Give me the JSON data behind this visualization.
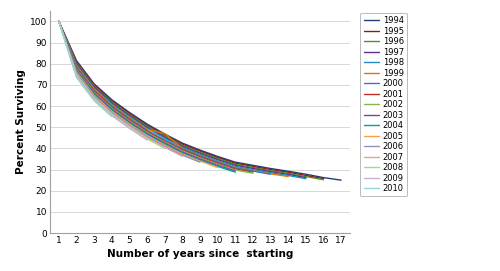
{
  "xlabel": "Number of years since  starting",
  "ylabel": "Percent Surviving",
  "xlim": [
    0.5,
    17.5
  ],
  "ylim": [
    0,
    105
  ],
  "yticks": [
    0,
    10,
    20,
    30,
    40,
    50,
    60,
    70,
    80,
    90,
    100
  ],
  "xticks": [
    1,
    2,
    3,
    4,
    5,
    6,
    7,
    8,
    9,
    10,
    11,
    12,
    13,
    14,
    15,
    16,
    17
  ],
  "series": {
    "1994": {
      "color": "#1F3F7A",
      "data": [
        100,
        81.5,
        70.5,
        63.0,
        57.0,
        51.5,
        46.8,
        42.5,
        39.2,
        36.2,
        33.5,
        32.0,
        30.5,
        29.2,
        27.8,
        26.2,
        25.0
      ]
    },
    "1995": {
      "color": "#8B1A1A",
      "data": [
        100,
        81.0,
        70.0,
        62.5,
        56.5,
        51.0,
        46.3,
        42.0,
        38.7,
        35.7,
        33.0,
        31.5,
        30.0,
        28.7,
        27.2,
        25.7
      ]
    },
    "1996": {
      "color": "#5B8C2A",
      "data": [
        100,
        80.5,
        69.5,
        62.0,
        56.0,
        50.5,
        45.8,
        41.5,
        38.2,
        35.2,
        32.5,
        31.0,
        29.5,
        28.2,
        26.7,
        25.2
      ]
    },
    "1997": {
      "color": "#5B2D8E",
      "data": [
        100,
        80.0,
        69.0,
        61.5,
        55.5,
        50.0,
        45.3,
        41.0,
        37.7,
        34.7,
        32.0,
        30.5,
        29.0,
        27.7,
        26.2
      ]
    },
    "1998": {
      "color": "#1E90C0",
      "data": [
        100,
        79.5,
        68.5,
        61.0,
        55.0,
        49.5,
        44.8,
        40.5,
        37.2,
        34.2,
        31.5,
        30.0,
        28.5,
        27.2,
        25.7
      ]
    },
    "1999": {
      "color": "#E07800",
      "data": [
        100,
        79.0,
        68.0,
        60.5,
        54.5,
        49.0,
        47.0,
        40.0,
        36.7,
        33.7,
        31.0,
        29.5,
        28.0,
        26.7
      ]
    },
    "2000": {
      "color": "#4472C4",
      "data": [
        100,
        78.5,
        67.5,
        60.0,
        54.0,
        48.5,
        44.0,
        39.8,
        36.5,
        33.5,
        30.8,
        29.3,
        27.8
      ]
    },
    "2001": {
      "color": "#C0302A",
      "data": [
        100,
        78.0,
        67.0,
        59.5,
        53.5,
        48.0,
        43.5,
        39.3,
        36.0,
        33.0,
        30.3,
        28.8
      ]
    },
    "2002": {
      "color": "#7DBB42",
      "data": [
        100,
        77.5,
        66.5,
        59.0,
        53.0,
        47.5,
        43.0,
        38.8,
        35.5,
        32.5,
        29.8,
        28.3
      ]
    },
    "2003": {
      "color": "#7B3FB5",
      "data": [
        100,
        77.0,
        66.0,
        58.5,
        52.5,
        47.0,
        42.5,
        38.3,
        35.0,
        32.0,
        29.3
      ]
    },
    "2004": {
      "color": "#00A0A0",
      "data": [
        100,
        76.5,
        65.5,
        58.0,
        52.0,
        46.5,
        42.0,
        37.8,
        34.5,
        31.5,
        28.8
      ]
    },
    "2005": {
      "color": "#FFA040",
      "data": [
        100,
        76.0,
        65.0,
        57.5,
        51.5,
        46.0,
        41.5,
        37.3,
        34.0,
        31.0
      ]
    },
    "2006": {
      "color": "#9090C0",
      "data": [
        100,
        75.5,
        64.5,
        57.0,
        51.0,
        45.5,
        41.0,
        36.8,
        33.5
      ]
    },
    "2007": {
      "color": "#E0A0A8",
      "data": [
        100,
        75.0,
        64.0,
        56.5,
        50.5,
        45.0,
        40.5,
        36.3
      ]
    },
    "2008": {
      "color": "#A8D888",
      "data": [
        100,
        74.5,
        63.5,
        56.0,
        50.0,
        44.5,
        40.0
      ]
    },
    "2009": {
      "color": "#C8B0D8",
      "data": [
        100,
        74.0,
        63.0,
        55.5,
        49.5,
        44.0
      ]
    },
    "2010": {
      "color": "#90D8D8",
      "data": [
        100,
        73.5,
        62.5,
        55.0
      ]
    }
  },
  "legend_years": [
    "1994",
    "1995",
    "1996",
    "1997",
    "1998",
    "1999",
    "2000",
    "2001",
    "2002",
    "2003",
    "2004",
    "2005",
    "2006",
    "2007",
    "2008",
    "2009",
    "2010"
  ],
  "background_color": "#FFFFFF",
  "grid_color": "#C8C8C8",
  "border_color": "#A0A0A0"
}
